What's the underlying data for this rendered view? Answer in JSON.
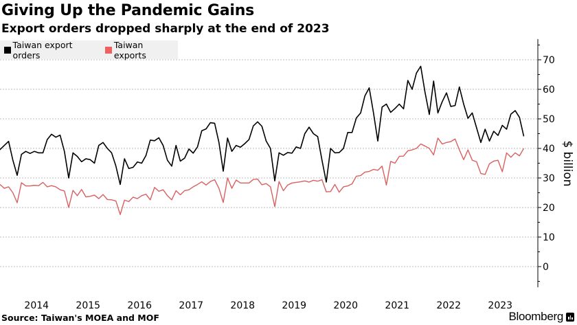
{
  "chart_data": {
    "type": "line",
    "title": "Giving Up the Pandemic Gains",
    "subtitle": "Export orders dropped sharply at the end of 2023",
    "xlabel": "",
    "ylabel": "$ billion",
    "ylim": [
      -7,
      77
    ],
    "y_ticks": [
      0,
      10,
      20,
      30,
      40,
      50,
      60,
      70
    ],
    "y_tick_labels": [
      "0",
      "10",
      "20",
      "30",
      "40",
      "50",
      "60",
      "70"
    ],
    "x_tick_labels": [
      "2014",
      "2015",
      "2016",
      "2017",
      "2018",
      "2019",
      "2020",
      "2021",
      "2022",
      "2023"
    ],
    "grid": true,
    "legend_position": "top-left",
    "x_start": "2013-09",
    "x_end": "2023-12",
    "frequency": "monthly",
    "series": [
      {
        "name": "Taiwan export orders",
        "color": "#000000",
        "values": [
          38.6,
          39.6,
          41,
          42.4,
          36,
          30.9,
          38,
          39,
          38.3,
          39,
          38.5,
          38.5,
          43,
          44.8,
          43.8,
          44.5,
          39,
          30,
          38.5,
          37.3,
          35.5,
          36.5,
          36.2,
          35,
          41,
          42,
          40,
          38.5,
          34,
          27.8,
          36.5,
          33.2,
          33.6,
          35.4,
          35,
          37.6,
          42.8,
          42.6,
          43.6,
          41,
          36,
          34,
          41,
          35.7,
          36.7,
          39.8,
          38.4,
          40.5,
          46,
          46.6,
          48.7,
          48.5,
          42,
          32.3,
          43.5,
          39,
          41,
          40.4,
          41.6,
          43,
          47.6,
          49,
          47.5,
          42.5,
          40,
          29,
          38.5,
          37.7,
          38.6,
          38.4,
          40.5,
          40,
          45,
          47.2,
          45,
          44,
          36,
          28.6,
          40,
          38.5,
          38.6,
          40,
          45.4,
          45.4,
          50.3,
          52,
          57.8,
          60.5,
          52,
          42.5,
          54,
          55,
          52.2,
          53.5,
          55,
          53.4,
          63,
          60,
          65.5,
          67.8,
          59,
          51.5,
          62.8,
          52,
          55.8,
          58.8,
          54.2,
          54.5,
          60.8,
          55,
          50.2,
          52,
          47,
          42,
          46.5,
          42.5,
          45.8,
          44.4,
          47.8,
          46.5,
          51.6,
          52.8,
          50.5,
          44.1
        ]
      },
      {
        "name": "Taiwan exports",
        "color": "#d9605f",
        "values": [
          26.5,
          27.8,
          26.5,
          27,
          25,
          21.6,
          28.4,
          27.3,
          27.3,
          27.5,
          27.4,
          28.5,
          27,
          27.4,
          27,
          26,
          25.6,
          20,
          25.8,
          24,
          26.1,
          23.6,
          23.8,
          24.2,
          23,
          24.4,
          22.7,
          22.6,
          22.2,
          17.6,
          22.5,
          22,
          23.5,
          23,
          24,
          24.5,
          22.6,
          26.8,
          25.5,
          26,
          24,
          22.6,
          25.7,
          24.3,
          25.7,
          26,
          27,
          27.8,
          28.7,
          27.6,
          28.8,
          29.4,
          26.5,
          21.7,
          30,
          26.5,
          29.3,
          28.3,
          28.3,
          28.3,
          29.5,
          29.6,
          27.7,
          28.1,
          27,
          20.3,
          28.8,
          25.7,
          27.6,
          28.3,
          28.5,
          28.7,
          29,
          28.6,
          29.2,
          28.9,
          29.4,
          25.3,
          25.4,
          27.8,
          25.2,
          27,
          27.3,
          28,
          30.6,
          30.8,
          32,
          32.2,
          32.9,
          32.6,
          34,
          27.6,
          35.6,
          35,
          37.3,
          37.4,
          39.2,
          39.5,
          40,
          41.5,
          40.8,
          40,
          37.8,
          43.5,
          41.5,
          42,
          42.3,
          43.2,
          39.5,
          36.2,
          39.5,
          36,
          35.5,
          31.5,
          31.2,
          34.8,
          35.7,
          36,
          32.1,
          38.5,
          37,
          38.5,
          37.5,
          40
        ]
      }
    ]
  },
  "legend": {
    "items": [
      {
        "label": "Taiwan export orders",
        "color": "#000000"
      },
      {
        "label": "Taiwan exports",
        "color": "#f06060"
      }
    ]
  },
  "footer": {
    "source": "Source: Taiwan's MOEA and MOF",
    "brand": "Bloomberg"
  }
}
